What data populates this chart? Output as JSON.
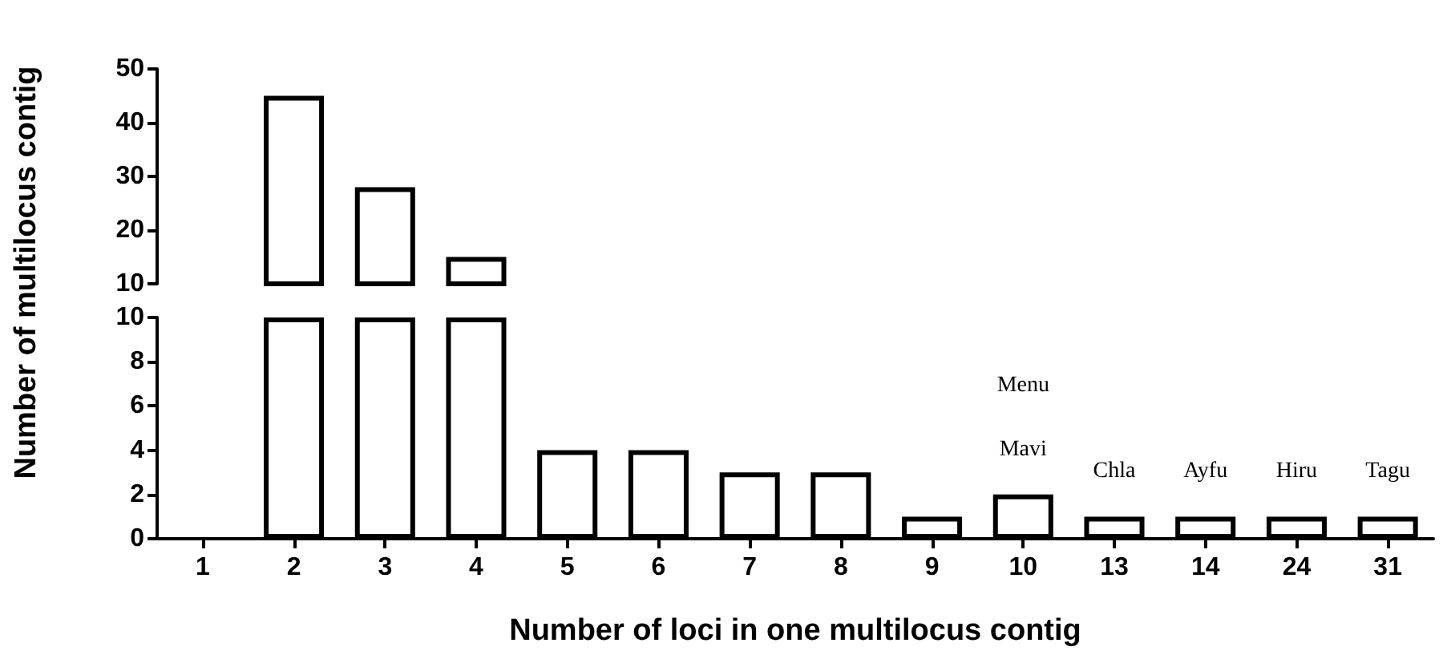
{
  "chart_data": [
    {
      "type": "bar",
      "ylabel": "Number of multilocus contig",
      "tick_labels": "y",
      "categories": [
        "1",
        "2",
        "3",
        "4",
        "5",
        "6",
        "7",
        "8",
        "9",
        "10",
        "13",
        "14",
        "24",
        "31"
      ],
      "values": [
        null,
        45,
        28,
        15,
        null,
        null,
        null,
        null,
        null,
        null,
        null,
        null,
        null,
        null
      ],
      "color": "#ffffff",
      "ylim": [
        10,
        50
      ],
      "yticks": [
        10,
        20,
        30,
        40,
        50
      ]
    },
    {
      "type": "bar",
      "xlabel": "Number of loci in one multilocus contig",
      "categories": [
        "1",
        "2",
        "3",
        "4",
        "5",
        "6",
        "7",
        "8",
        "9",
        "10",
        "13",
        "14",
        "24",
        "31"
      ],
      "values": [
        0,
        10,
        10,
        10,
        4,
        4,
        3,
        3,
        1,
        2,
        1,
        1,
        1,
        1
      ],
      "color": "#ffffff",
      "ylim": [
        0,
        10
      ],
      "yticks": [
        0,
        2,
        4,
        6,
        8,
        10
      ],
      "annotations": [
        {
          "text": "Mavi",
          "x": "10",
          "y": 2
        },
        "Menu",
        {
          "text": "Chla",
          "x": "13",
          "y": 1
        },
        {
          "text": "Ayfu",
          "x": "14",
          "y": 1
        },
        {
          "text": "Hiru",
          "x": "24",
          "y": 1
        },
        {
          "text": "Tagu",
          "x": "31",
          "y": 1
        }
      ]
    }
  ]
}
